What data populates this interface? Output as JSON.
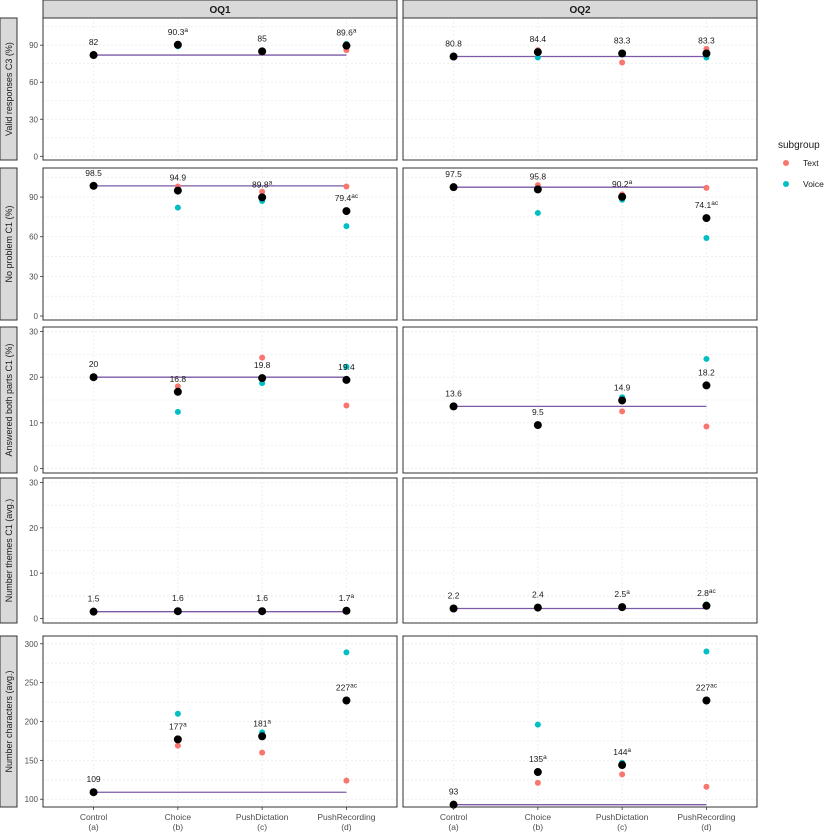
{
  "chart_data": {
    "type": "scatter",
    "facets": {
      "columns": [
        "OQ1",
        "OQ2"
      ],
      "rows": [
        "Valid responses C3 (%)",
        "No problem C1 (%)",
        "Answered both parts C1 (%)",
        "Number themes C1 (avg.)",
        "Number characters (avg.)"
      ]
    },
    "x_categories": [
      {
        "name": "Control",
        "code": "(a)"
      },
      {
        "name": "Choice",
        "code": "(b)"
      },
      {
        "name": "PushDictation",
        "code": "(c)"
      },
      {
        "name": "PushRecording",
        "code": "(d)"
      }
    ],
    "legend": {
      "title": "subgroup",
      "position": "right",
      "entries": [
        {
          "name": "Text",
          "color": "#F8766D"
        },
        {
          "name": "Voice",
          "color": "#00BFC4"
        }
      ]
    },
    "colors": {
      "overall": "#000000",
      "baseline": "#7B5AA6",
      "strip": "#D9D9D9",
      "grid": "#EBEBEB"
    },
    "panels": [
      {
        "row": 0,
        "col": 0,
        "ylim": [
          -3,
          112
        ],
        "ticks": [
          0,
          30,
          60,
          90
        ],
        "overall": [
          82,
          90.3,
          85,
          89.6
        ],
        "text": [
          null,
          91,
          84,
          86
        ],
        "voice": [
          null,
          89,
          85,
          91
        ],
        "labels": [
          {
            "base": "82",
            "sup": ""
          },
          {
            "base": "90.3",
            "sup": "a"
          },
          {
            "base": "85",
            "sup": ""
          },
          {
            "base": "89.6",
            "sup": "a"
          }
        ]
      },
      {
        "row": 0,
        "col": 1,
        "ylim": [
          -3,
          112
        ],
        "ticks": [
          0,
          30,
          60,
          90
        ],
        "overall": [
          80.8,
          84.4,
          83.3,
          83.3
        ],
        "text": [
          null,
          86,
          76,
          87
        ],
        "voice": [
          null,
          80,
          84,
          80
        ],
        "labels": [
          {
            "base": "80.8",
            "sup": ""
          },
          {
            "base": "84.4",
            "sup": ""
          },
          {
            "base": "83.3",
            "sup": ""
          },
          {
            "base": "83.3",
            "sup": ""
          }
        ]
      },
      {
        "row": 1,
        "col": 0,
        "ylim": [
          -3,
          112
        ],
        "ticks": [
          0,
          30,
          60,
          90
        ],
        "overall": [
          98.5,
          94.9,
          89.8,
          79.4
        ],
        "text": [
          null,
          98,
          94,
          98
        ],
        "voice": [
          null,
          82,
          87,
          68
        ],
        "labels": [
          {
            "base": "98.5",
            "sup": ""
          },
          {
            "base": "94.9",
            "sup": ""
          },
          {
            "base": "89.8",
            "sup": "a"
          },
          {
            "base": "79.4",
            "sup": "ac"
          }
        ]
      },
      {
        "row": 1,
        "col": 1,
        "ylim": [
          -3,
          112
        ],
        "ticks": [
          0,
          30,
          60,
          90
        ],
        "overall": [
          97.5,
          95.8,
          90.2,
          74.1
        ],
        "text": [
          null,
          99,
          92,
          97
        ],
        "voice": [
          null,
          78,
          88,
          59
        ],
        "labels": [
          {
            "base": "97.5",
            "sup": ""
          },
          {
            "base": "95.8",
            "sup": ""
          },
          {
            "base": "90.2",
            "sup": "a"
          },
          {
            "base": "74.1",
            "sup": "ac"
          }
        ]
      },
      {
        "row": 2,
        "col": 0,
        "ylim": [
          -1,
          31
        ],
        "ticks": [
          0,
          10,
          20,
          30
        ],
        "overall": [
          20,
          16.8,
          19.8,
          19.4
        ],
        "text": [
          null,
          18,
          24.3,
          13.8
        ],
        "voice": [
          null,
          12.4,
          18.7,
          22.3
        ],
        "labels": [
          {
            "base": "20",
            "sup": ""
          },
          {
            "base": "16.8",
            "sup": ""
          },
          {
            "base": "19.8",
            "sup": ""
          },
          {
            "base": "19.4",
            "sup": ""
          }
        ]
      },
      {
        "row": 2,
        "col": 1,
        "ylim": [
          -1,
          31
        ],
        "ticks": [
          0,
          10,
          20,
          30
        ],
        "overall": [
          13.6,
          9.5,
          14.9,
          18.2
        ],
        "text": [
          null,
          9.4,
          12.5,
          9.2
        ],
        "voice": [
          null,
          9.6,
          15.6,
          24
        ],
        "labels": [
          {
            "base": "13.6",
            "sup": ""
          },
          {
            "base": "9.5",
            "sup": ""
          },
          {
            "base": "14.9",
            "sup": ""
          },
          {
            "base": "18.2",
            "sup": ""
          }
        ]
      },
      {
        "row": 3,
        "col": 0,
        "ylim": [
          -1,
          31
        ],
        "ticks": [
          0,
          10,
          20,
          30
        ],
        "overall": [
          1.5,
          1.6,
          1.6,
          1.7
        ],
        "text": [
          null,
          1.6,
          1.6,
          1.7
        ],
        "voice": [
          null,
          1.6,
          1.6,
          1.8
        ],
        "labels": [
          {
            "base": "1.5",
            "sup": ""
          },
          {
            "base": "1.6",
            "sup": ""
          },
          {
            "base": "1.6",
            "sup": ""
          },
          {
            "base": "1.7",
            "sup": "a"
          }
        ]
      },
      {
        "row": 3,
        "col": 1,
        "ylim": [
          -1,
          31
        ],
        "ticks": [
          0,
          10,
          20,
          30
        ],
        "overall": [
          2.2,
          2.4,
          2.5,
          2.8
        ],
        "text": [
          null,
          2.3,
          2.5,
          2.7
        ],
        "voice": [
          null,
          2.6,
          2.5,
          3.1
        ],
        "labels": [
          {
            "base": "2.2",
            "sup": ""
          },
          {
            "base": "2.4",
            "sup": ""
          },
          {
            "base": "2.5",
            "sup": "a"
          },
          {
            "base": "2.8",
            "sup": "ac"
          }
        ]
      },
      {
        "row": 4,
        "col": 0,
        "ylim": [
          90,
          310
        ],
        "ticks": [
          100,
          150,
          200,
          250,
          300
        ],
        "overall": [
          109,
          177,
          181,
          227
        ],
        "text": [
          null,
          169,
          160,
          124
        ],
        "voice": [
          null,
          210,
          186,
          289
        ],
        "labels": [
          {
            "base": "109",
            "sup": ""
          },
          {
            "base": "177",
            "sup": "a"
          },
          {
            "base": "181",
            "sup": "a"
          },
          {
            "base": "227",
            "sup": "ac"
          }
        ]
      },
      {
        "row": 4,
        "col": 1,
        "ylim": [
          90,
          310
        ],
        "ticks": [
          100,
          150,
          200,
          250,
          300
        ],
        "overall": [
          93,
          135,
          144,
          227
        ],
        "text": [
          null,
          121,
          132,
          116
        ],
        "voice": [
          null,
          196,
          147,
          290
        ],
        "labels": [
          {
            "base": "93",
            "sup": ""
          },
          {
            "base": "135",
            "sup": "a"
          },
          {
            "base": "144",
            "sup": "a"
          },
          {
            "base": "227",
            "sup": "ac"
          }
        ]
      }
    ]
  }
}
